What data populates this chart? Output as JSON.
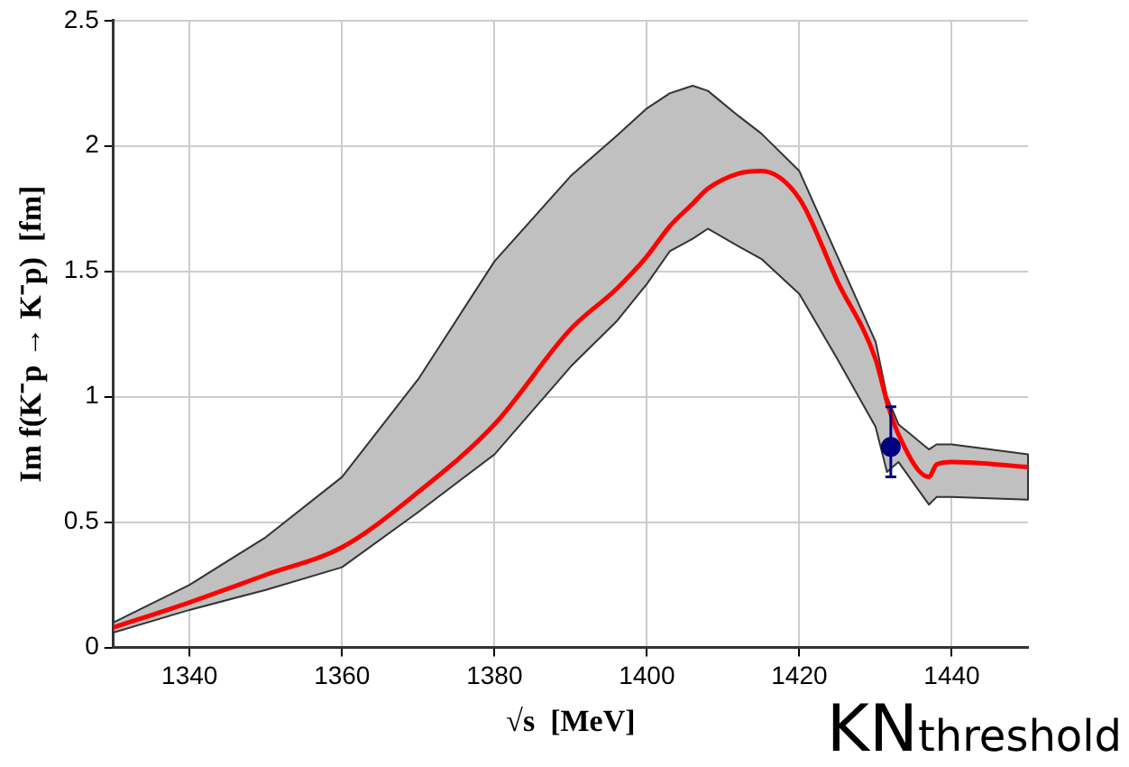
{
  "chart_data": {
    "type": "line",
    "xlabel": "√s  [MeV]",
    "ylabel": "Im f(K⁻p → K⁻p)  [fm]",
    "annotations": [
      "KN$_{threshold}$"
    ],
    "xlim": [
      1330,
      1450
    ],
    "xticks": [
      1340,
      1360,
      1380,
      1400,
      1420,
      1440
    ],
    "ylim": [
      0,
      2.5
    ],
    "yticks": [
      0,
      0.5,
      1,
      1.5,
      2,
      2.5
    ],
    "grid": true,
    "legend": false,
    "line_style": "solid",
    "series": [
      {
        "type": "line",
        "color": "#ff0000",
        "marker": "none",
        "x": [
          1330,
          1340,
          1350,
          1360,
          1370,
          1380,
          1390,
          1396,
          1400,
          1403,
          1406,
          1408,
          1412,
          1415,
          1420,
          1425,
          1430,
          1431.5,
          1433,
          1437,
          1438,
          1440,
          1450
        ],
        "values": [
          0.08,
          0.18,
          0.29,
          0.4,
          0.62,
          0.89,
          1.27,
          1.43,
          1.56,
          1.68,
          1.77,
          1.83,
          1.89,
          1.9,
          1.79,
          1.46,
          1.15,
          0.98,
          0.85,
          0.68,
          0.73,
          0.74,
          0.72
        ],
        "lower": [
          0.06,
          0.15,
          0.23,
          0.32,
          0.54,
          0.77,
          1.12,
          1.3,
          1.45,
          1.58,
          1.63,
          1.67,
          1.6,
          1.55,
          1.41,
          1.15,
          0.88,
          0.7,
          0.74,
          0.57,
          0.6,
          0.6,
          0.59
        ],
        "upper": [
          0.1,
          0.25,
          0.44,
          0.68,
          1.07,
          1.54,
          1.88,
          2.04,
          2.15,
          2.21,
          2.24,
          2.22,
          2.12,
          2.05,
          1.9,
          1.56,
          1.22,
          1.0,
          0.89,
          0.79,
          0.81,
          0.81,
          0.77
        ]
      },
      {
        "type": "scatter",
        "color": "#000080",
        "marker": "circle",
        "x": [
          1432
        ],
        "values": [
          0.8
        ],
        "errors": [
          [
            0.68,
            0.96
          ]
        ]
      }
    ]
  }
}
